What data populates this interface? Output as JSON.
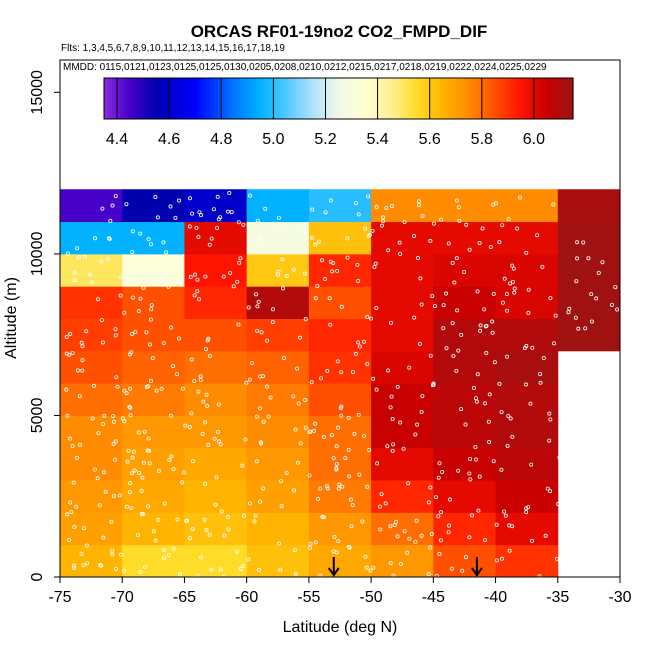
{
  "chart_data": {
    "type": "heatmap",
    "title": "ORCAS RF01-19no2 CO2_FMPD_DIF",
    "flights_text": "Flts: 1,3,4,5,6,7,8,9,10,11,12,13,14,15,16,17,18,19",
    "mmdd_text": "MMDD: 0115,0121,0123,0125,0125,0130,0205,0208,0210,0212,0215,0217,0218,0219,0222,0224,0225,0229",
    "xlabel": "Latitude (deg N)",
    "ylabel": "Altitude (m)",
    "xlim": [
      -75,
      -30
    ],
    "ylim": [
      0,
      16000
    ],
    "x_ticks": [
      -75,
      -70,
      -65,
      -60,
      -55,
      -50,
      -45,
      -40,
      -35,
      -30
    ],
    "x_tick_labels": [
      "-75",
      "-70",
      "-65",
      "-60",
      "-55",
      "-50",
      "-45",
      "-40",
      "-35",
      "-30"
    ],
    "y_ticks": [
      0,
      5000,
      10000,
      15000
    ],
    "y_tick_labels": [
      "0",
      "5000",
      "10000",
      "15000"
    ],
    "colorbar": {
      "range": [
        4.35,
        6.15
      ],
      "ticks": [
        4.4,
        4.6,
        4.8,
        5.0,
        5.2,
        5.4,
        5.6,
        5.8,
        6.0
      ],
      "tick_labels": [
        "4.4",
        "4.6",
        "4.8",
        "5.0",
        "5.2",
        "5.4",
        "5.6",
        "5.8",
        "6.0"
      ]
    },
    "lat_bins": [
      -75,
      -70,
      -65,
      -60,
      -55,
      -50,
      -45,
      -40,
      -35,
      -30
    ],
    "alt_bins": [
      0,
      1000,
      2000,
      3000,
      4000,
      5000,
      6000,
      7000,
      8000,
      9000,
      10000,
      11000,
      12000
    ],
    "values": [
      [
        5.65,
        5.55,
        5.55,
        5.62,
        5.68,
        5.72,
        5.85,
        5.9,
        null
      ],
      [
        5.7,
        5.65,
        5.62,
        5.65,
        5.72,
        5.8,
        5.92,
        6.0,
        null
      ],
      [
        5.72,
        5.68,
        5.65,
        5.7,
        5.78,
        5.92,
        6.0,
        6.05,
        null
      ],
      [
        5.75,
        5.7,
        5.68,
        5.72,
        5.8,
        6.0,
        6.05,
        6.08,
        null
      ],
      [
        5.75,
        5.72,
        5.72,
        5.75,
        5.8,
        6.05,
        6.08,
        6.1,
        null
      ],
      [
        5.8,
        5.78,
        5.75,
        5.78,
        5.85,
        6.05,
        6.08,
        6.1,
        null
      ],
      [
        5.85,
        5.82,
        5.8,
        5.82,
        5.9,
        6.02,
        6.1,
        6.12,
        null
      ],
      [
        5.88,
        5.85,
        5.85,
        5.88,
        5.92,
        6.0,
        6.1,
        6.1,
        6.14
      ],
      [
        5.9,
        5.85,
        5.92,
        6.1,
        5.85,
        6.0,
        6.05,
        6.02,
        6.14
      ],
      [
        5.5,
        5.32,
        5.95,
        5.6,
        5.92,
        6.0,
        6.02,
        6.02,
        6.14
      ],
      [
        4.95,
        4.95,
        6.0,
        5.28,
        5.62,
        6.0,
        6.0,
        6.0,
        6.14
      ],
      [
        4.45,
        4.55,
        4.6,
        4.95,
        5.0,
        5.75,
        5.75,
        5.75,
        6.12
      ]
    ],
    "flight_track_markers_at_lat": [
      -53,
      -41.5
    ],
    "legend_placement": "top (horizontal colorbar)"
  }
}
